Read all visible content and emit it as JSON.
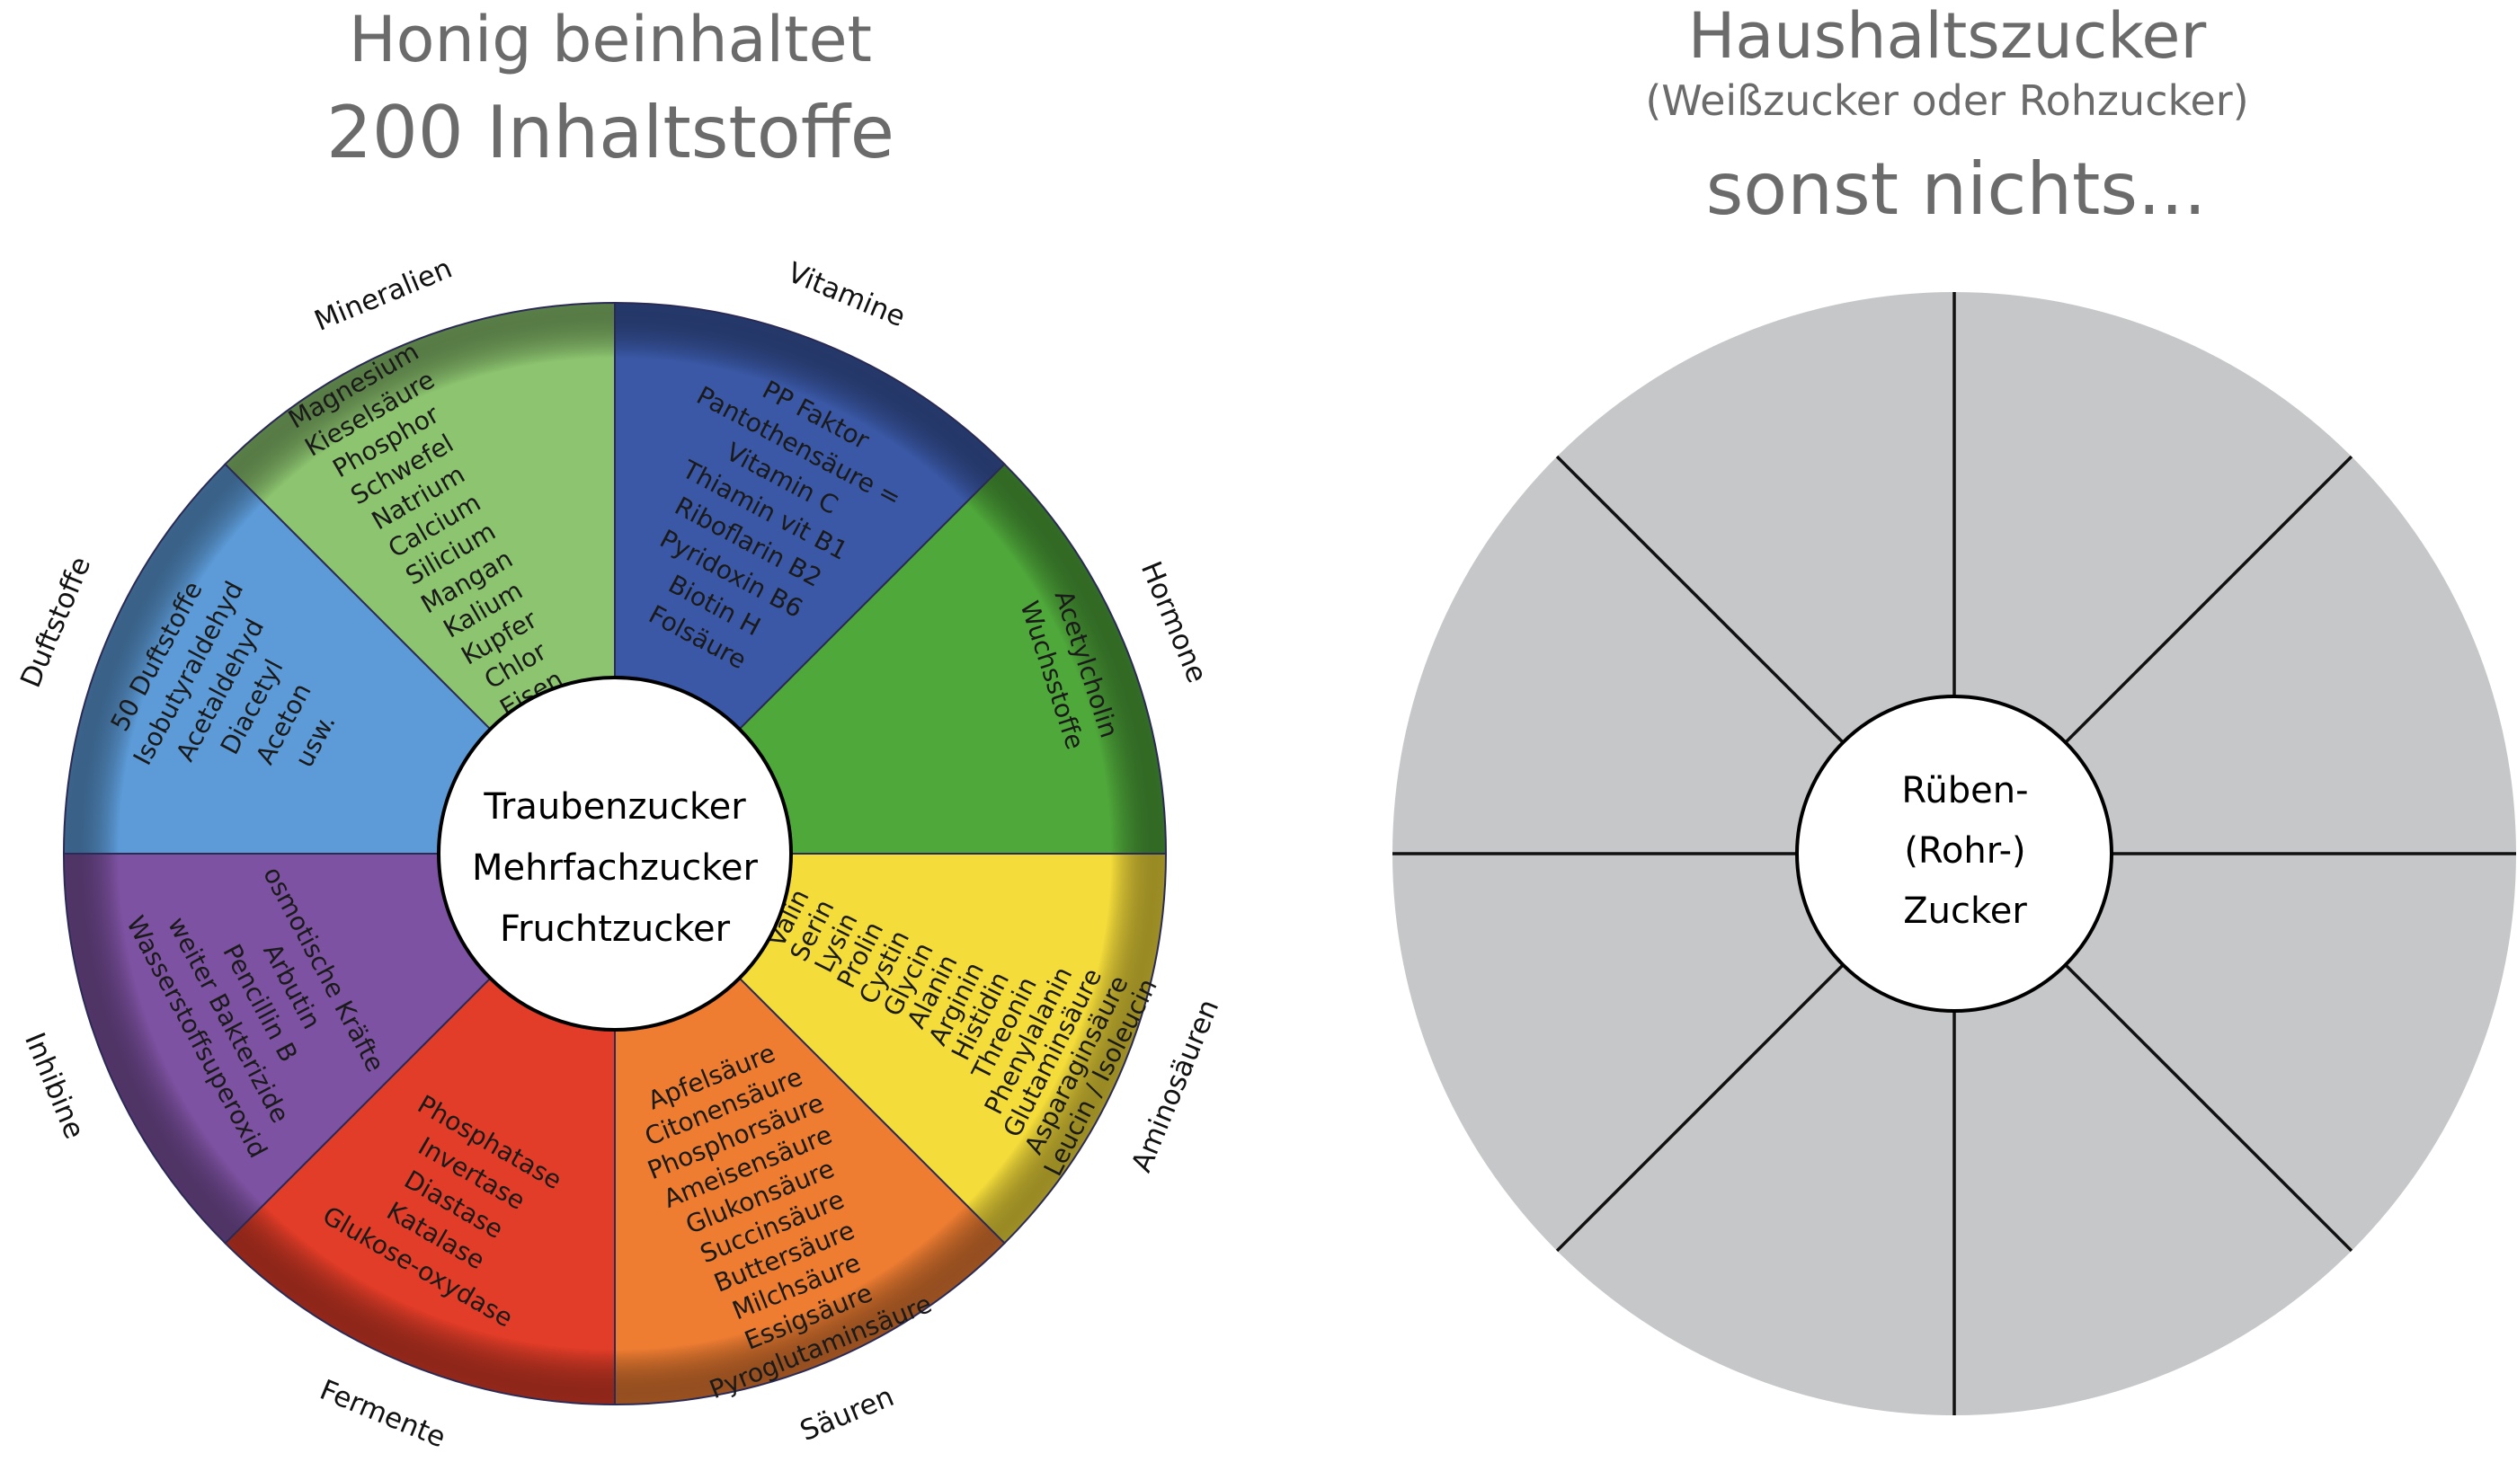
{
  "left": {
    "title_line1": "Honig beinhaltet",
    "title_line2": "200 Inhaltstoffe",
    "center_lines": [
      "Traubenzucker",
      "Mehrfachzucker",
      "Fruchtzucker"
    ],
    "segments": [
      {
        "label": "Vitamine",
        "color": "#3a58a6",
        "items": [
          "PP Faktor",
          "Pantothensäure =",
          "Vitamin C",
          "Thiamin vit B1",
          "Riboflarin B2",
          "Pyridoxin B6",
          "Biotin H",
          "Folsäure"
        ]
      },
      {
        "label": "Hormone",
        "color": "#4fa83a",
        "items": [
          "Acetylcholin",
          "Wuchsstoffe"
        ]
      },
      {
        "label": "Aminosäuren",
        "color": "#f4dc3a",
        "items": [
          "Valin",
          "Serin",
          "Lysin",
          "Prolin",
          "Cystin",
          "Glycin",
          "Alanin",
          "Arginin",
          "Histidin",
          "Threonin",
          "Phenylalanin",
          "Glutaminsäure",
          "Asparaginsäure",
          "Leucin / Isoleucin"
        ]
      },
      {
        "label": "Säuren",
        "color": "#ee7d32",
        "items": [
          "Apfelsäure",
          "Citonensäure",
          "Phosphorsäure",
          "Ameisensäure",
          "Glukonsäure",
          "Succinsäure",
          "Buttersäure",
          "Milchsäure",
          "Essigsäure",
          "Pyroglutaminsäure"
        ]
      },
      {
        "label": "Fermente",
        "color": "#e23d28",
        "items": [
          "Phosphatase",
          "Invertase",
          "Diastase",
          "Katalase",
          "Glukose-oxydase"
        ]
      },
      {
        "label": "Inhibine",
        "color": "#7e52a2",
        "items": [
          "osmotische Kräfte",
          "Arbutin",
          "Pencillin B",
          "weiter Bakterizide",
          "Wasserstoffsuperoxid"
        ]
      },
      {
        "label": "Duftstoffe",
        "color": "#5c9bd8",
        "items": [
          "50 Duftstoffe",
          "Isobutyraldehyd",
          "Acetaldehyd",
          "Diacetyl",
          "Aceton",
          "usw."
        ]
      },
      {
        "label": "Mineralien",
        "color": "#8cc46f",
        "items": [
          "Magnesium",
          "Kieselsäure",
          "Phosphor",
          "Schwefel",
          "Natrium",
          "Calcium",
          "Silicium",
          "Mangan",
          "Kalium",
          "Kupfer",
          "Chlor",
          "Eisen"
        ]
      }
    ]
  },
  "right": {
    "title_line1": "Haushaltszucker",
    "title_line2": "(Weißzucker oder Rohzucker)",
    "title_line3": "sonst nichts...",
    "center_lines": [
      "Rüben-",
      "(Rohr-)",
      "Zucker"
    ],
    "fill_color": "#c6c7c9",
    "segment_count": 8
  }
}
